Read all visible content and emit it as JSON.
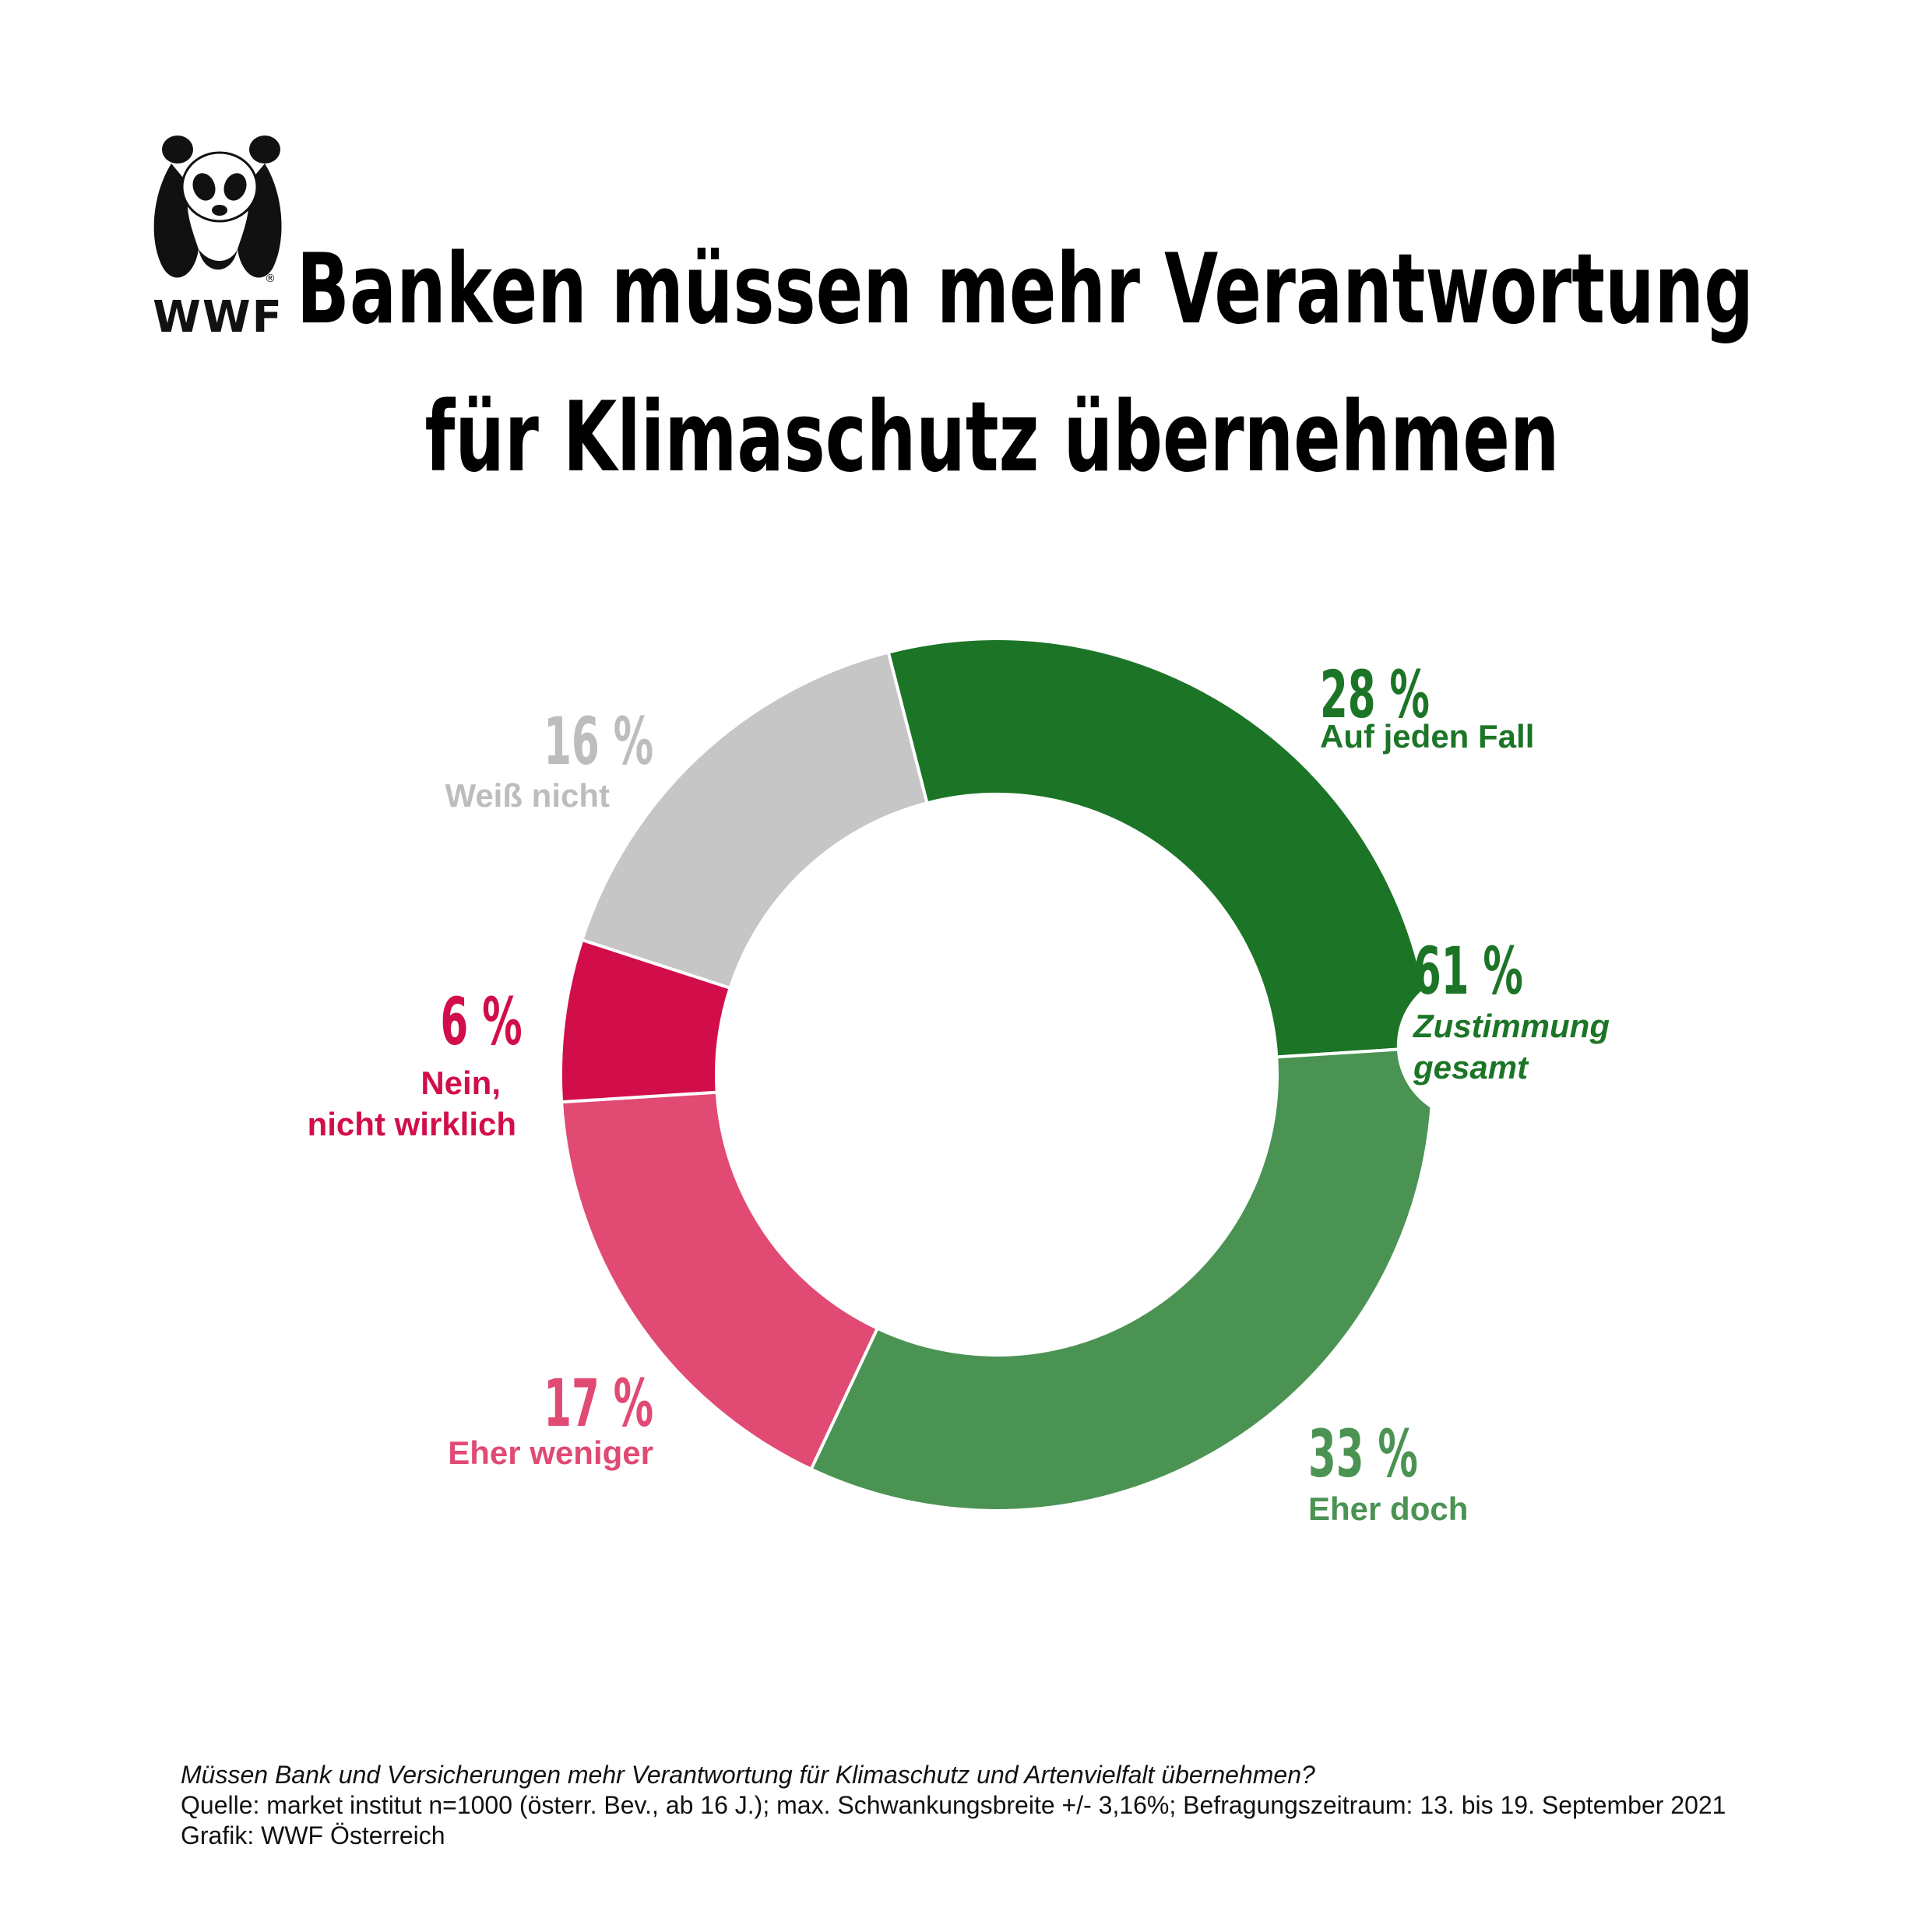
{
  "logo": {
    "text": "WWF",
    "icon": "panda-icon"
  },
  "title": {
    "line1": "Banken müssen mehr Verantwortung",
    "line2": "für Klimaschutz übernehmen"
  },
  "chart_data": {
    "type": "pie",
    "style": "donut",
    "unit": "%",
    "series": [
      {
        "name": "Auf jeden Fall",
        "value": 28,
        "label": "28 %",
        "color": "#1c7527"
      },
      {
        "name": "Eher doch",
        "value": 33,
        "label": "33 %",
        "color": "#4b9353"
      },
      {
        "name": "Eher weniger",
        "value": 17,
        "label": "17 %",
        "color": "#e04a73"
      },
      {
        "name": "Nein, nicht wirklich",
        "value": 6,
        "label": "6 %",
        "color": "#d20e4a"
      },
      {
        "name": "Weiß nicht",
        "value": 16,
        "label": "16 %",
        "color": "#c6c6c6"
      }
    ],
    "total_agreement": {
      "value": 61,
      "label": "61 %",
      "text_line1": "Zustimmung",
      "text_line2": "gesamt",
      "color": "#1c7527"
    }
  },
  "labels": {
    "auf_jeden_fall": {
      "pct": "28  %",
      "text": "Auf jeden Fall"
    },
    "eher_doch": {
      "pct": "33 %",
      "text": "Eher doch"
    },
    "eher_weniger": {
      "pct": "17 %",
      "text": "Eher weniger"
    },
    "nein": {
      "pct": "6 %",
      "text_line1": "Nein,",
      "text_line2": "nicht wirklich"
    },
    "weiss_nicht": {
      "pct": "16 %",
      "text": "Weiß nicht"
    },
    "zustimmung": {
      "pct": "61 %",
      "text_line1": "Zustimmung",
      "text_line2": "gesamt"
    }
  },
  "footer": {
    "question": "Müssen Bank und Versicherungen mehr Verantwortung für Klimaschutz und Artenvielfalt übernehmen?",
    "source": "Quelle: market institut n=1000 (österr. Bev., ab 16 J.); max. Schwankungsbreite +/- 3,16%; Befragungszeitraum: 13. bis 19. September 2021",
    "credit": "Grafik: WWF Österreich"
  }
}
